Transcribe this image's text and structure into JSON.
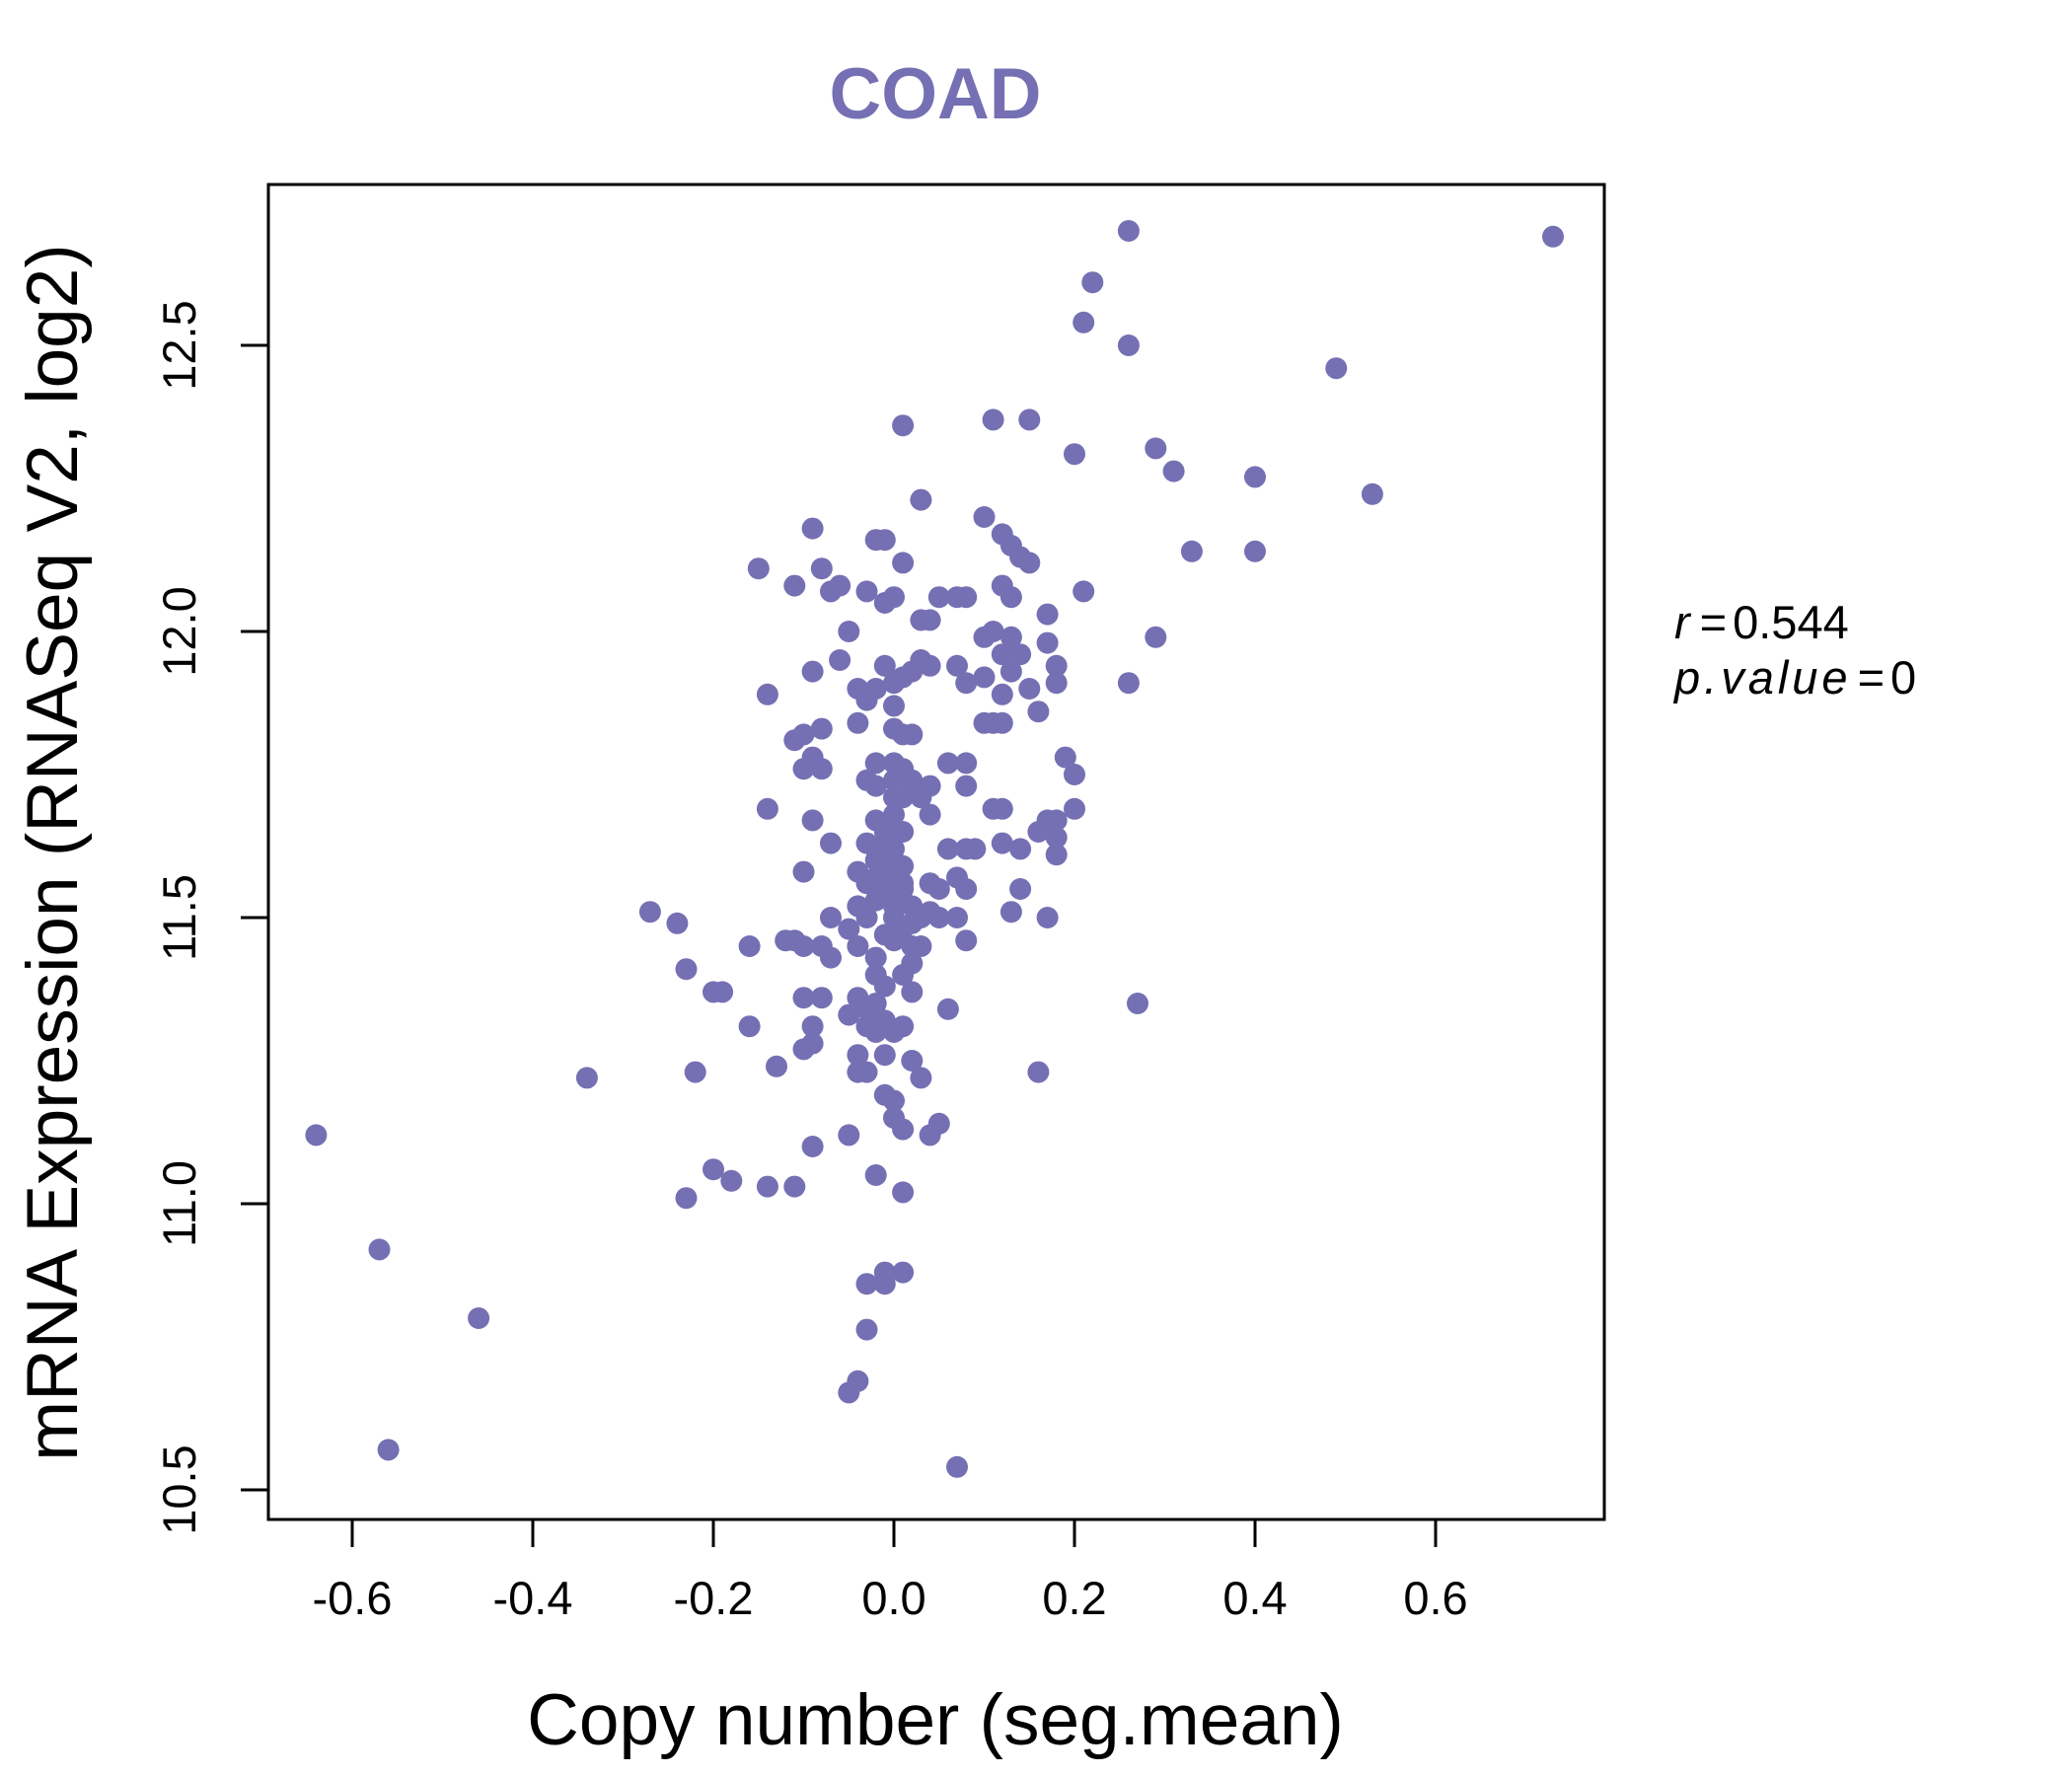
{
  "chart_data": {
    "type": "scatter",
    "title": "COAD",
    "xlabel": "Copy number (seg.mean)",
    "ylabel": "mRNA Expression (RNASeq V2, log2)",
    "xlim": [
      -0.69,
      0.78
    ],
    "ylim": [
      10.45,
      12.78
    ],
    "x_ticks": [
      -0.6,
      -0.4,
      -0.2,
      0.0,
      0.2,
      0.4,
      0.6
    ],
    "x_tick_labels": [
      "-0.6",
      "-0.4",
      "-0.2",
      "0.0",
      "0.2",
      "0.4",
      "0.6"
    ],
    "y_ticks": [
      10.5,
      11.0,
      11.5,
      12.0,
      12.5
    ],
    "y_tick_labels": [
      "10.5",
      "11.0",
      "11.5",
      "12.0",
      "12.5"
    ],
    "grid": false,
    "color": "#7570b3",
    "annotation": {
      "r_label": "r",
      "r_value": "0.544",
      "p_label": "p.value",
      "p_value": "0"
    },
    "points": [
      [
        0.26,
        12.7
      ],
      [
        0.73,
        12.69
      ],
      [
        0.22,
        12.61
      ],
      [
        0.21,
        12.54
      ],
      [
        0.26,
        12.5
      ],
      [
        0.49,
        12.46
      ],
      [
        0.01,
        12.36
      ],
      [
        0.11,
        12.37
      ],
      [
        0.15,
        12.37
      ],
      [
        0.2,
        12.31
      ],
      [
        0.29,
        12.32
      ],
      [
        0.31,
        12.28
      ],
      [
        0.4,
        12.27
      ],
      [
        0.53,
        12.24
      ],
      [
        0.03,
        12.23
      ],
      [
        0.1,
        12.2
      ],
      [
        0.4,
        12.14
      ],
      [
        0.33,
        12.14
      ],
      [
        -0.09,
        12.18
      ],
      [
        0.12,
        12.17
      ],
      [
        0.13,
        12.15
      ],
      [
        0.14,
        12.13
      ],
      [
        0.15,
        12.12
      ],
      [
        -0.02,
        12.16
      ],
      [
        -0.01,
        12.16
      ],
      [
        0.01,
        12.12
      ],
      [
        -0.15,
        12.11
      ],
      [
        -0.08,
        12.11
      ],
      [
        -0.11,
        12.08
      ],
      [
        -0.06,
        12.08
      ],
      [
        -0.07,
        12.07
      ],
      [
        -0.03,
        12.07
      ],
      [
        0.12,
        12.08
      ],
      [
        0.13,
        12.06
      ],
      [
        0.21,
        12.07
      ],
      [
        -0.01,
        12.05
      ],
      [
        0.0,
        12.06
      ],
      [
        0.05,
        12.06
      ],
      [
        0.07,
        12.06
      ],
      [
        0.08,
        12.06
      ],
      [
        0.17,
        12.03
      ],
      [
        0.03,
        12.02
      ],
      [
        0.04,
        12.02
      ],
      [
        -0.05,
        12.0
      ],
      [
        0.1,
        11.99
      ],
      [
        0.11,
        12.0
      ],
      [
        0.13,
        11.99
      ],
      [
        0.17,
        11.98
      ],
      [
        0.29,
        11.99
      ],
      [
        -0.06,
        11.95
      ],
      [
        0.12,
        11.96
      ],
      [
        0.14,
        11.96
      ],
      [
        -0.09,
        11.93
      ],
      [
        -0.01,
        11.94
      ],
      [
        0.03,
        11.95
      ],
      [
        0.04,
        11.94
      ],
      [
        0.07,
        11.94
      ],
      [
        0.18,
        11.94
      ],
      [
        0.13,
        11.93
      ],
      [
        -0.04,
        11.9
      ],
      [
        -0.02,
        11.9
      ],
      [
        0.0,
        11.91
      ],
      [
        0.01,
        11.92
      ],
      [
        0.02,
        11.93
      ],
      [
        0.08,
        11.91
      ],
      [
        0.1,
        11.92
      ],
      [
        0.15,
        11.9
      ],
      [
        0.18,
        11.91
      ],
      [
        0.26,
        11.91
      ],
      [
        -0.14,
        11.89
      ],
      [
        -0.03,
        11.88
      ],
      [
        0.0,
        11.87
      ],
      [
        0.12,
        11.89
      ],
      [
        0.16,
        11.86
      ],
      [
        -0.1,
        11.82
      ],
      [
        -0.08,
        11.83
      ],
      [
        -0.04,
        11.84
      ],
      [
        0.0,
        11.83
      ],
      [
        0.01,
        11.82
      ],
      [
        0.02,
        11.82
      ],
      [
        0.1,
        11.84
      ],
      [
        0.11,
        11.84
      ],
      [
        0.12,
        11.84
      ],
      [
        -0.11,
        11.81
      ],
      [
        0.19,
        11.78
      ],
      [
        -0.09,
        11.78
      ],
      [
        -0.1,
        11.76
      ],
      [
        -0.08,
        11.76
      ],
      [
        -0.02,
        11.77
      ],
      [
        0.0,
        11.77
      ],
      [
        0.01,
        11.76
      ],
      [
        0.06,
        11.77
      ],
      [
        0.08,
        11.77
      ],
      [
        0.2,
        11.75
      ],
      [
        -0.03,
        11.74
      ],
      [
        -0.02,
        11.73
      ],
      [
        0.0,
        11.74
      ],
      [
        0.02,
        11.74
      ],
      [
        0.04,
        11.73
      ],
      [
        0.08,
        11.73
      ],
      [
        0.0,
        11.71
      ],
      [
        0.01,
        11.71
      ],
      [
        0.03,
        11.71
      ],
      [
        -0.14,
        11.69
      ],
      [
        0.11,
        11.69
      ],
      [
        0.12,
        11.69
      ],
      [
        0.2,
        11.69
      ],
      [
        -0.09,
        11.67
      ],
      [
        -0.02,
        11.67
      ],
      [
        0.0,
        11.68
      ],
      [
        0.04,
        11.68
      ],
      [
        0.17,
        11.67
      ],
      [
        0.18,
        11.67
      ],
      [
        -0.01,
        11.65
      ],
      [
        0.01,
        11.65
      ],
      [
        0.16,
        11.65
      ],
      [
        0.18,
        11.64
      ],
      [
        -0.07,
        11.63
      ],
      [
        -0.03,
        11.63
      ],
      [
        -0.02,
        11.62
      ],
      [
        0.0,
        11.62
      ],
      [
        0.06,
        11.62
      ],
      [
        0.08,
        11.62
      ],
      [
        0.09,
        11.62
      ],
      [
        0.12,
        11.63
      ],
      [
        0.14,
        11.62
      ],
      [
        -0.02,
        11.6
      ],
      [
        0.0,
        11.6
      ],
      [
        -0.01,
        11.59
      ],
      [
        0.01,
        11.59
      ],
      [
        0.18,
        11.61
      ],
      [
        -0.1,
        11.58
      ],
      [
        -0.04,
        11.58
      ],
      [
        -0.02,
        11.57
      ],
      [
        0.0,
        11.57
      ],
      [
        0.01,
        11.56
      ],
      [
        -0.03,
        11.56
      ],
      [
        0.07,
        11.57
      ],
      [
        -0.01,
        11.55
      ],
      [
        0.01,
        11.55
      ],
      [
        0.04,
        11.56
      ],
      [
        0.05,
        11.55
      ],
      [
        0.08,
        11.55
      ],
      [
        0.14,
        11.55
      ],
      [
        -0.02,
        11.53
      ],
      [
        0.0,
        11.52
      ],
      [
        0.02,
        11.52
      ],
      [
        -0.04,
        11.52
      ],
      [
        0.13,
        11.51
      ],
      [
        -0.27,
        11.51
      ],
      [
        -0.07,
        11.5
      ],
      [
        -0.03,
        11.5
      ],
      [
        0.0,
        11.5
      ],
      [
        0.02,
        11.49
      ],
      [
        0.03,
        11.5
      ],
      [
        0.04,
        11.51
      ],
      [
        0.05,
        11.5
      ],
      [
        0.07,
        11.5
      ],
      [
        0.17,
        11.5
      ],
      [
        -0.24,
        11.49
      ],
      [
        -0.05,
        11.48
      ],
      [
        -0.01,
        11.47
      ],
      [
        0.01,
        11.48
      ],
      [
        0.0,
        11.46
      ],
      [
        -0.12,
        11.46
      ],
      [
        -0.1,
        11.45
      ],
      [
        -0.11,
        11.46
      ],
      [
        -0.08,
        11.45
      ],
      [
        -0.04,
        11.45
      ],
      [
        0.02,
        11.45
      ],
      [
        0.03,
        11.45
      ],
      [
        0.08,
        11.46
      ],
      [
        -0.16,
        11.45
      ],
      [
        -0.07,
        11.43
      ],
      [
        -0.02,
        11.43
      ],
      [
        0.02,
        11.42
      ],
      [
        -0.23,
        11.41
      ],
      [
        -0.02,
        11.4
      ],
      [
        0.01,
        11.4
      ],
      [
        -0.01,
        11.38
      ],
      [
        0.02,
        11.37
      ],
      [
        -0.2,
        11.37
      ],
      [
        -0.19,
        11.37
      ],
      [
        -0.1,
        11.36
      ],
      [
        -0.08,
        11.36
      ],
      [
        -0.04,
        11.36
      ],
      [
        -0.02,
        11.35
      ],
      [
        0.27,
        11.35
      ],
      [
        -0.03,
        11.34
      ],
      [
        0.06,
        11.34
      ],
      [
        -0.05,
        11.33
      ],
      [
        -0.02,
        11.33
      ],
      [
        -0.01,
        11.32
      ],
      [
        0.01,
        11.31
      ],
      [
        -0.03,
        11.31
      ],
      [
        -0.16,
        11.31
      ],
      [
        -0.09,
        11.31
      ],
      [
        -0.02,
        11.3
      ],
      [
        0.0,
        11.3
      ],
      [
        -0.09,
        11.28
      ],
      [
        -0.1,
        11.27
      ],
      [
        -0.04,
        11.26
      ],
      [
        -0.01,
        11.26
      ],
      [
        0.02,
        11.25
      ],
      [
        -0.04,
        11.23
      ],
      [
        -0.03,
        11.23
      ],
      [
        -0.13,
        11.24
      ],
      [
        -0.22,
        11.23
      ],
      [
        -0.34,
        11.22
      ],
      [
        0.16,
        11.23
      ],
      [
        0.03,
        11.22
      ],
      [
        -0.01,
        11.19
      ],
      [
        0.0,
        11.18
      ],
      [
        0.0,
        11.15
      ],
      [
        0.05,
        11.14
      ],
      [
        0.01,
        11.13
      ],
      [
        0.04,
        11.12
      ],
      [
        -0.64,
        11.12
      ],
      [
        -0.05,
        11.12
      ],
      [
        -0.09,
        11.1
      ],
      [
        -0.2,
        11.06
      ],
      [
        -0.18,
        11.04
      ],
      [
        -0.14,
        11.03
      ],
      [
        -0.11,
        11.03
      ],
      [
        -0.02,
        11.05
      ],
      [
        0.01,
        11.02
      ],
      [
        -0.23,
        11.01
      ],
      [
        -0.57,
        10.92
      ],
      [
        0.01,
        10.88
      ],
      [
        -0.01,
        10.88
      ],
      [
        -0.03,
        10.86
      ],
      [
        -0.01,
        10.86
      ],
      [
        -0.46,
        10.8
      ],
      [
        -0.03,
        10.78
      ],
      [
        -0.04,
        10.69
      ],
      [
        -0.05,
        10.67
      ],
      [
        -0.56,
        10.57
      ],
      [
        0.07,
        10.54
      ]
    ]
  }
}
